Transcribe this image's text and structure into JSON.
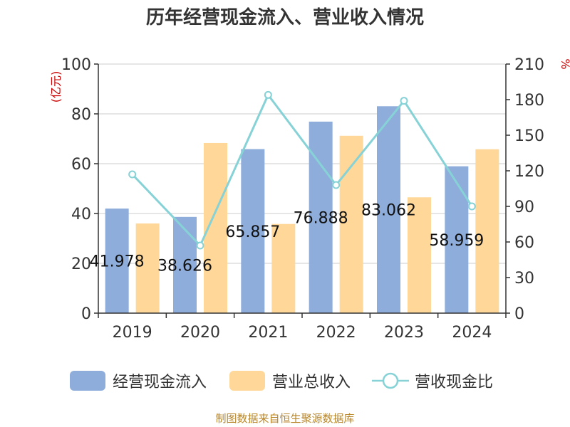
{
  "chart_data": {
    "type": "bar",
    "title": "历年经营现金流入、营业收入情况",
    "categories": [
      "2019",
      "2020",
      "2021",
      "2022",
      "2023",
      "2024"
    ],
    "series": [
      {
        "name": "经营现金流入",
        "kind": "bar",
        "axis": "left",
        "color": "#8eaddb",
        "values": [
          41.978,
          38.626,
          65.857,
          76.888,
          83.062,
          58.959
        ]
      },
      {
        "name": "营业总收入",
        "kind": "bar",
        "axis": "left",
        "color": "#ffd899",
        "values": [
          36.0,
          68.3,
          35.8,
          71.2,
          46.5,
          65.8
        ]
      },
      {
        "name": "营收现金比",
        "kind": "line",
        "axis": "right",
        "color": "#86d2d6",
        "values": [
          117,
          57,
          184,
          108,
          179,
          90
        ]
      }
    ],
    "data_labels": [
      "41.978",
      "38.626",
      "65.857",
      "76.888",
      "83.062",
      "58.959"
    ],
    "y_left": {
      "label": "(亿元)",
      "min": 0,
      "max": 100,
      "ticks": [
        "0",
        "20",
        "40",
        "60",
        "80",
        "100"
      ]
    },
    "y_right": {
      "label": "%",
      "min": 0,
      "max": 210,
      "ticks": [
        "0",
        "30",
        "60",
        "90",
        "120",
        "150",
        "180",
        "210"
      ]
    },
    "grid": true,
    "legend_position": "bottom"
  },
  "legend": [
    {
      "label": "经营现金流入",
      "color": "#8eaddb"
    },
    {
      "label": "营业总收入",
      "color": "#ffd899"
    },
    {
      "label": "营收现金比",
      "color": "#86d2d6"
    }
  ],
  "source": "制图数据来自恒生聚源数据库"
}
